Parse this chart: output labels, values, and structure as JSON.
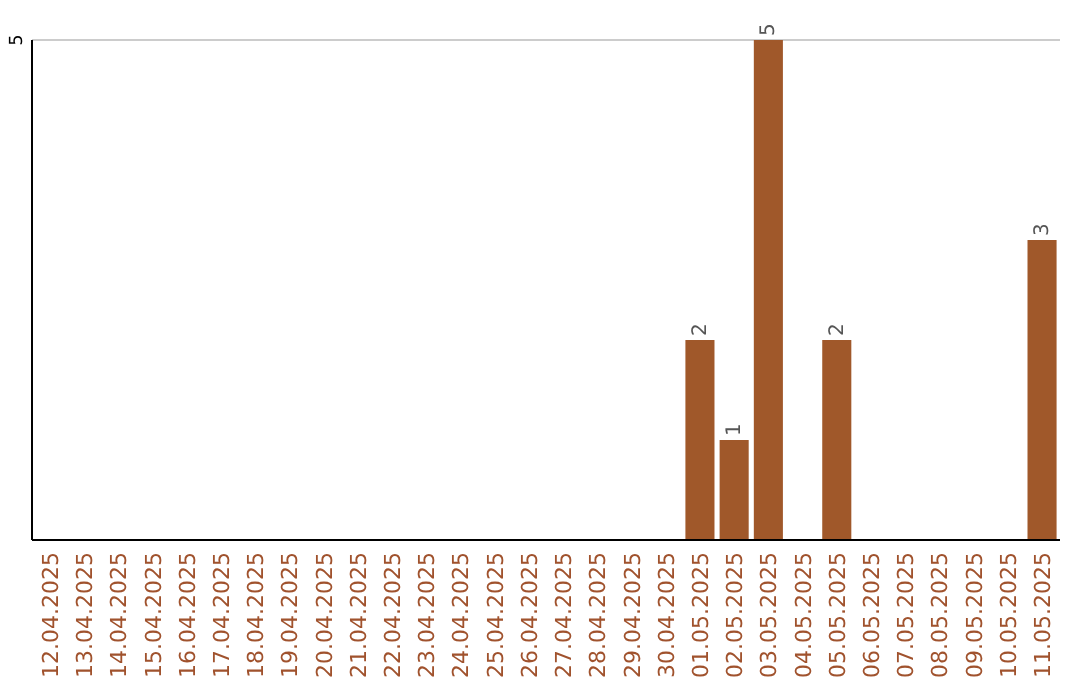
{
  "chart_data": {
    "type": "bar",
    "categories": [
      "12.04.2025",
      "13.04.2025",
      "14.04.2025",
      "15.04.2025",
      "16.04.2025",
      "17.04.2025",
      "18.04.2025",
      "19.04.2025",
      "20.04.2025",
      "21.04.2025",
      "22.04.2025",
      "23.04.2025",
      "24.04.2025",
      "25.04.2025",
      "26.04.2025",
      "27.04.2025",
      "28.04.2025",
      "29.04.2025",
      "30.04.2025",
      "01.05.2025",
      "02.05.2025",
      "03.05.2025",
      "04.05.2025",
      "05.05.2025",
      "06.05.2025",
      "07.05.2025",
      "08.05.2025",
      "09.05.2025",
      "10.05.2025",
      "11.05.2025"
    ],
    "values": [
      null,
      null,
      null,
      null,
      null,
      null,
      null,
      null,
      null,
      null,
      null,
      null,
      null,
      null,
      null,
      null,
      null,
      null,
      null,
      2,
      1,
      5,
      null,
      2,
      null,
      null,
      null,
      null,
      null,
      3
    ],
    "data_labels": true,
    "color": "#a0582a",
    "ylim": [
      0,
      5
    ],
    "yticks": [
      5
    ],
    "ref_lines": [
      {
        "axis": "y",
        "value": 5,
        "color": "#cccccc"
      }
    ]
  }
}
